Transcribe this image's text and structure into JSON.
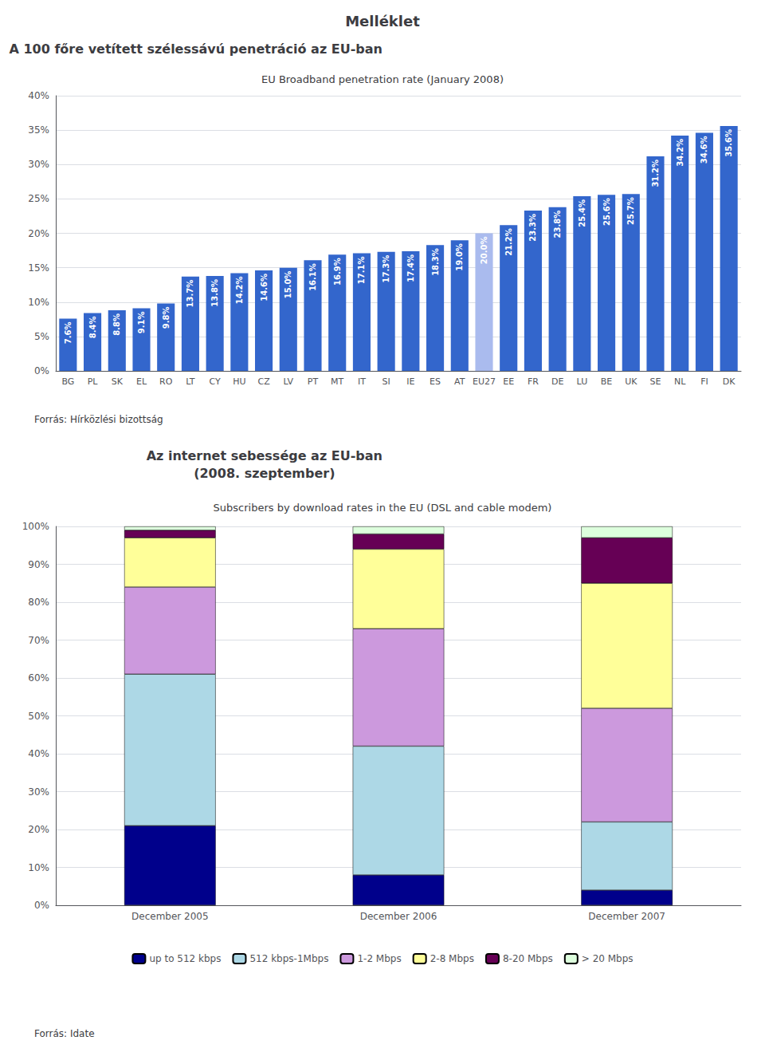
{
  "title": "Melléklet",
  "chart_data": [
    {
      "type": "bar",
      "subtitle": "A 100 főre vetített szélessávú penetráció az EU-ban",
      "title": "EU Broadband penetration rate (January 2008)",
      "categories": [
        "BG",
        "PL",
        "SK",
        "EL",
        "RO",
        "LT",
        "CY",
        "HU",
        "CZ",
        "LV",
        "PT",
        "MT",
        "IT",
        "SI",
        "IE",
        "ES",
        "AT",
        "EU27",
        "EE",
        "FR",
        "DE",
        "LU",
        "BE",
        "UK",
        "SE",
        "NL",
        "FI",
        "DK"
      ],
      "values": [
        7.6,
        8.4,
        8.8,
        9.1,
        9.8,
        13.7,
        13.8,
        14.2,
        14.6,
        15.0,
        16.1,
        16.9,
        17.1,
        17.3,
        17.4,
        18.3,
        19.0,
        20.0,
        21.2,
        23.3,
        23.8,
        25.4,
        25.6,
        25.7,
        31.2,
        34.2,
        34.6,
        35.6
      ],
      "value_labels": [
        "7.6%",
        "8.4%",
        "8.8%",
        "9.1%",
        "9.8%",
        "13.7%",
        "13.8%",
        "14.2%",
        "14.6%",
        "15.0%",
        "16.1%",
        "16.9%",
        "17.1%",
        "17.3%",
        "17.4%",
        "18.3%",
        "19.0%",
        "20.0%",
        "21.2%",
        "23.3%",
        "23.8%",
        "25.4%",
        "25.6%",
        "25.7%",
        "31.2%",
        "34.2%",
        "34.6%",
        "35.6%"
      ],
      "data_labels": true,
      "colors": [
        "#3366CC",
        "#3366CC",
        "#3366CC",
        "#3366CC",
        "#3366CC",
        "#3366CC",
        "#3366CC",
        "#3366CC",
        "#3366CC",
        "#3366CC",
        "#3366CC",
        "#3366CC",
        "#3366CC",
        "#3366CC",
        "#3366CC",
        "#3366CC",
        "#3366CC",
        "#AABBEE",
        "#3366CC",
        "#3366CC",
        "#3366CC",
        "#3366CC",
        "#3366CC",
        "#3366CC",
        "#3366CC",
        "#3366CC",
        "#3366CC",
        "#3366CC"
      ],
      "ylim": [
        0,
        40
      ],
      "yticks": [
        {
          "value": 0,
          "label": "0%"
        },
        {
          "value": 5,
          "label": "5%"
        },
        {
          "value": 10,
          "label": "10%"
        },
        {
          "value": 15,
          "label": "15%"
        },
        {
          "value": 20,
          "label": "20%"
        },
        {
          "value": 25,
          "label": "25%"
        },
        {
          "value": 30,
          "label": "30%"
        },
        {
          "value": 35,
          "label": "35%"
        },
        {
          "value": 40,
          "label": "40%"
        }
      ],
      "grid": true,
      "annotations": [
        "Forrás: Hírközlési bizottság"
      ]
    },
    {
      "type": "bar",
      "subtitle": "Az internet sebessége az EU-ban\n(2008. szeptember)",
      "title": "Subscribers by download rates in the EU (DSL and cable modem)",
      "categories": [
        "December 2005",
        "December 2006",
        "December 2007"
      ],
      "stacked": true,
      "series": [
        {
          "name": "up to 512 kbps",
          "color": "#00008B",
          "values": [
            21,
            8,
            4
          ]
        },
        {
          "name": "512 kbps-1Mbps",
          "color": "#ADD8E6",
          "values": [
            40,
            34,
            18
          ]
        },
        {
          "name": "1-2 Mbps",
          "color": "#CC99DD",
          "values": [
            23,
            31,
            30
          ]
        },
        {
          "name": "2-8 Mbps",
          "color": "#FFFF99",
          "values": [
            13,
            21,
            33
          ]
        },
        {
          "name": "8-20 Mbps",
          "color": "#660055",
          "values": [
            2,
            4,
            12
          ]
        },
        {
          "name": "> 20 Mbps",
          "color": "#DDFFDD",
          "values": [
            1,
            2,
            3
          ]
        }
      ],
      "ylim": [
        0,
        100
      ],
      "yticks": [
        {
          "value": 0,
          "label": "0%"
        },
        {
          "value": 10,
          "label": "10%"
        },
        {
          "value": 20,
          "label": "20%"
        },
        {
          "value": 30,
          "label": "30%"
        },
        {
          "value": 40,
          "label": "40%"
        },
        {
          "value": 50,
          "label": "50%"
        },
        {
          "value": 60,
          "label": "60%"
        },
        {
          "value": 70,
          "label": "70%"
        },
        {
          "value": 80,
          "label": "80%"
        },
        {
          "value": 90,
          "label": "90%"
        },
        {
          "value": 100,
          "label": "100%"
        }
      ],
      "grid": true,
      "legend": "bottom",
      "annotations": [
        "Forrás: Idate"
      ]
    }
  ]
}
